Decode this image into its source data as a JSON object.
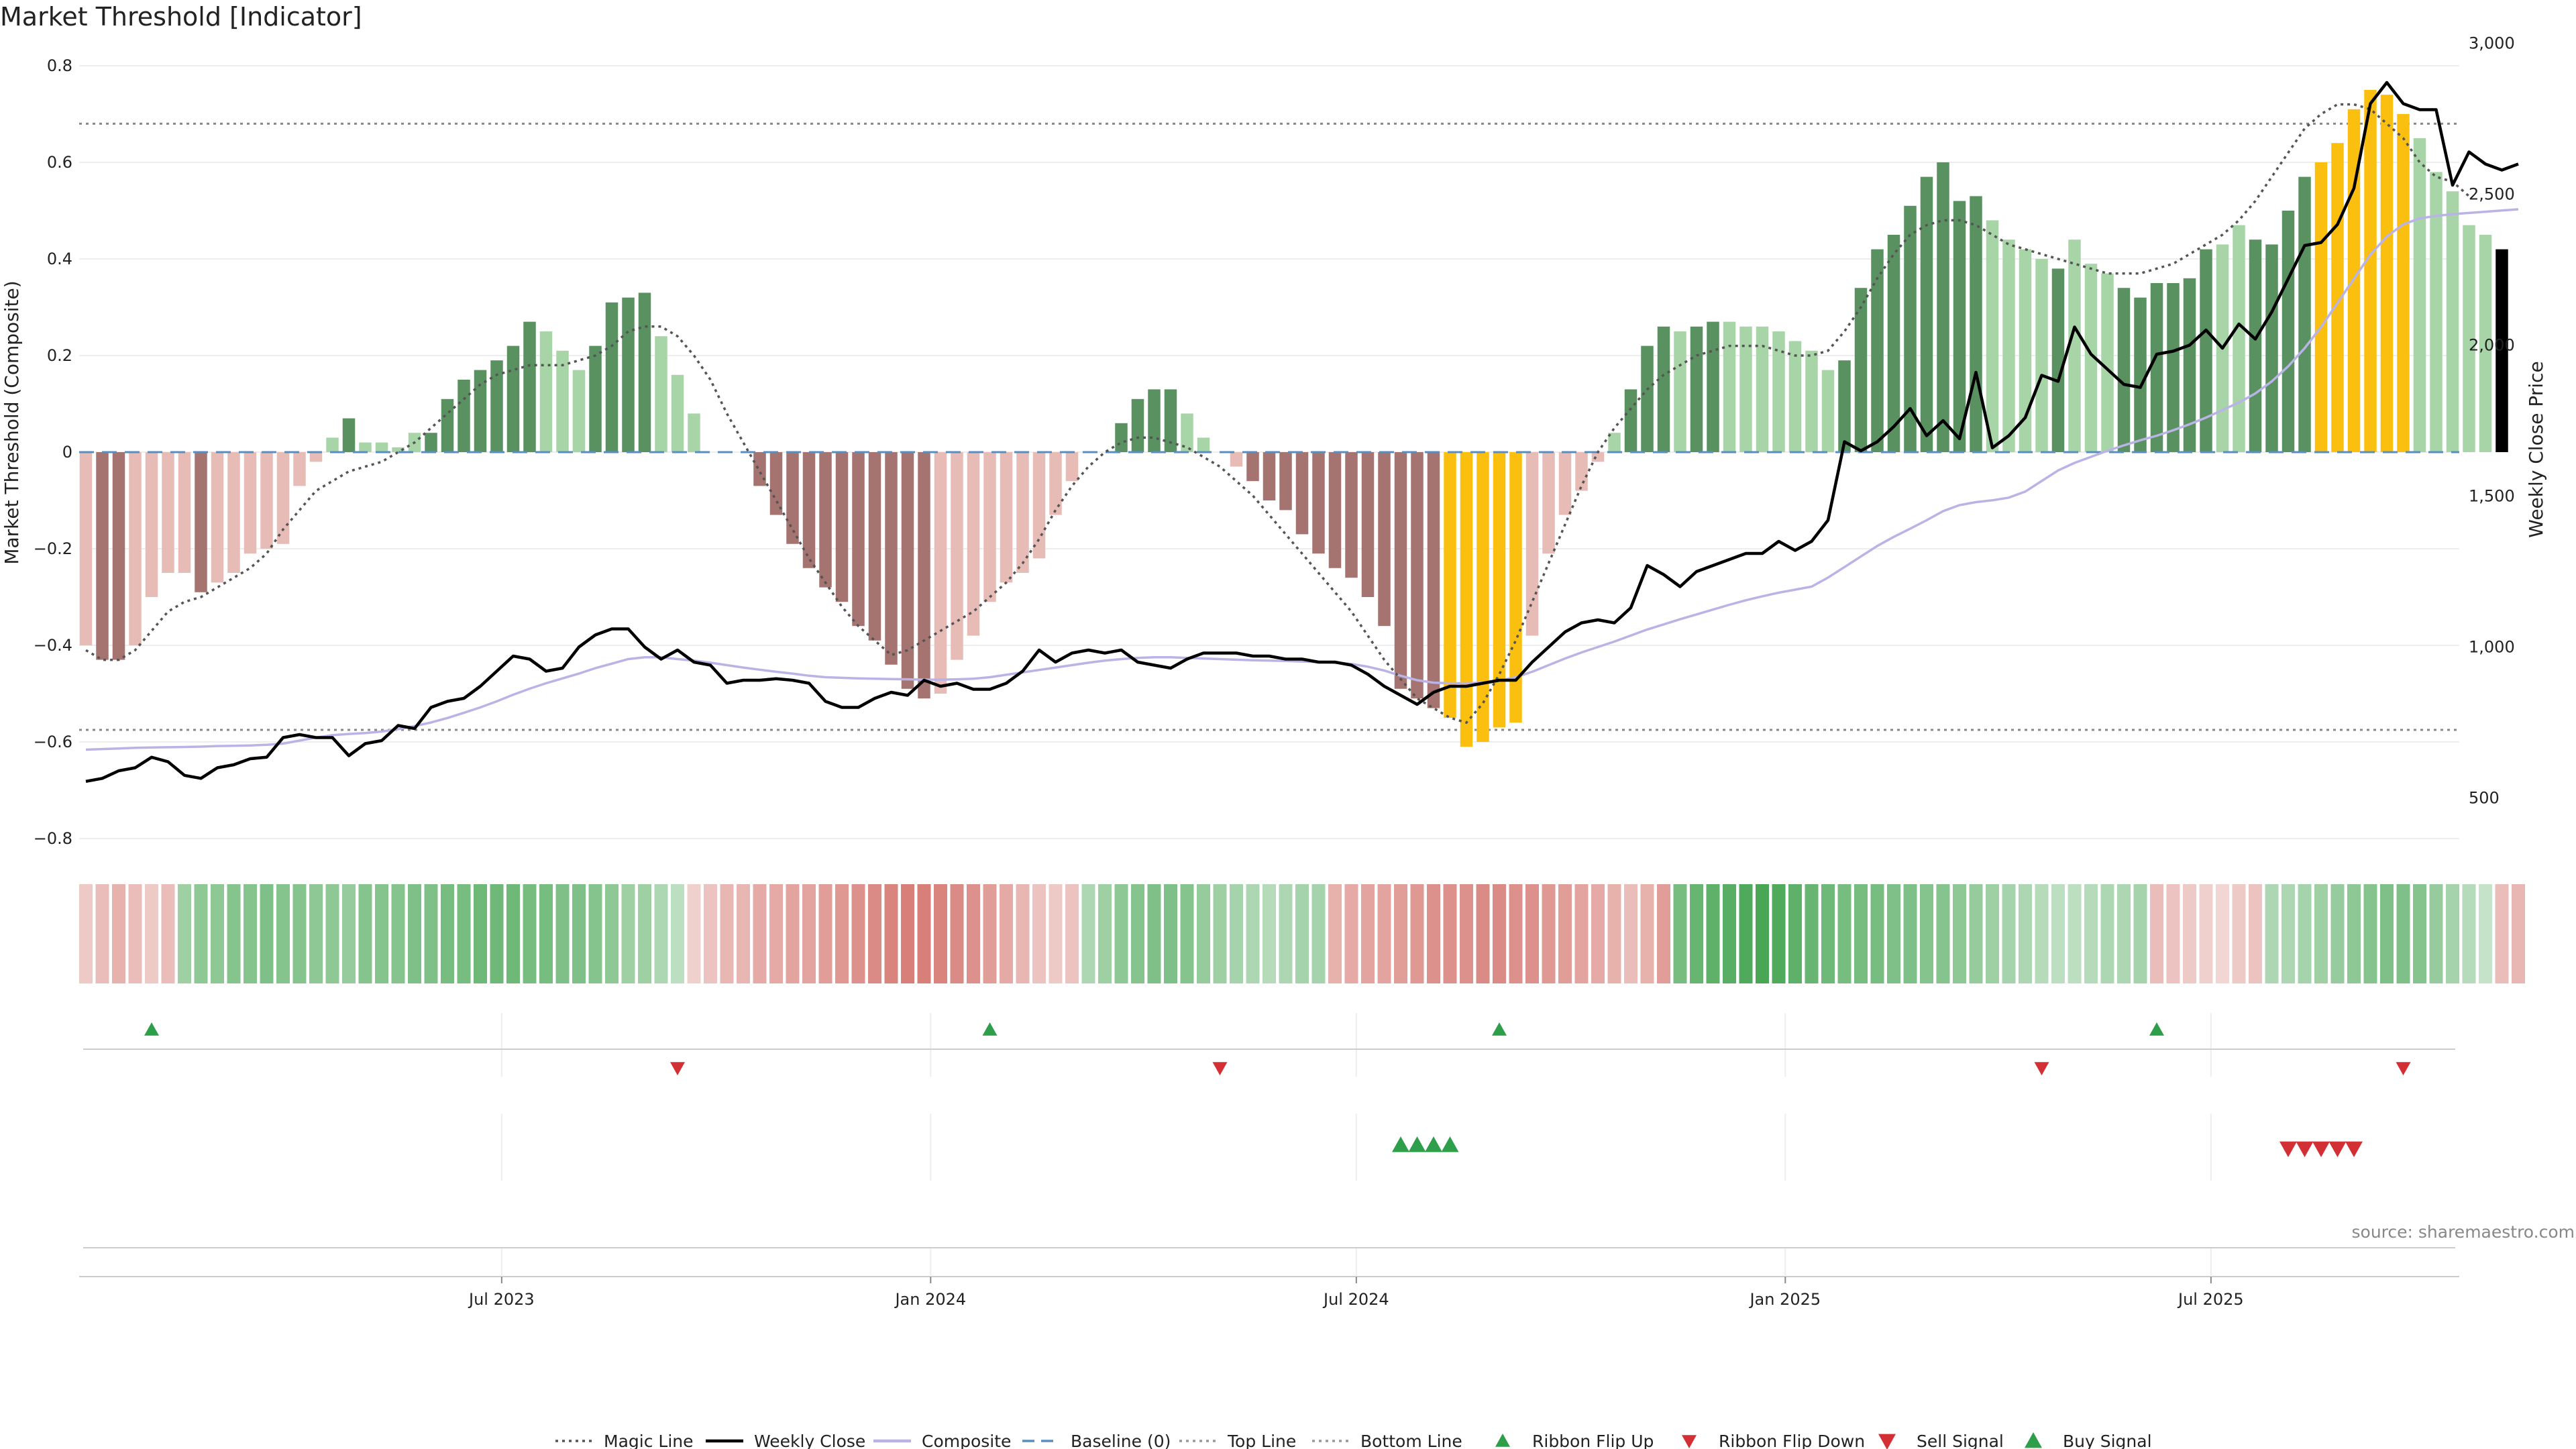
{
  "chart_data": {
    "type": "bar",
    "title": "Market Threshold [Indicator]",
    "ylabel_left": "Market Threshold (Composite)",
    "ylabel_right": "Weekly Close Price",
    "ylim_left": [
      -0.8,
      0.8
    ],
    "ylim_right": [
      350,
      3050
    ],
    "left_ticks": [
      "0.8",
      "0.6",
      "0.4",
      "0.2",
      "0",
      "−0.2",
      "−0.4",
      "−0.6",
      "−0.8"
    ],
    "right_ticks": [
      "3,000",
      "2,500",
      "2,000",
      "1,500",
      "1,000",
      "500"
    ],
    "x_ticks": [
      "Jul 2023",
      "Jan 2024",
      "Jul 2024",
      "Jan 2025",
      "Jul 2025"
    ],
    "x_range_weeks": [
      "2023-01-02",
      "2025-10-20"
    ],
    "top_line": 0.68,
    "bottom_line": -0.575,
    "grid": true,
    "legend_position": "bottom-center",
    "source": "source: sharemaestro.com",
    "colors": {
      "dark_green": "#5a9160",
      "light_green": "#a8d5a8",
      "dark_red": "#a67470",
      "light_red": "#e8bcb6",
      "extreme": "#fbbf10",
      "magic": "#555555",
      "close": "#000000",
      "composite": "#b9b3e6",
      "baseline": "#5a8ec1",
      "buy": "#2e9e4a",
      "sell": "#d33036"
    },
    "series": [
      {
        "name": "Composite",
        "values": [
          -0.4,
          -0.43,
          -0.43,
          -0.4,
          -0.3,
          -0.25,
          -0.25,
          -0.29,
          -0.27,
          -0.25,
          -0.21,
          -0.2,
          -0.19,
          -0.07,
          -0.02,
          0.03,
          0.07,
          0.02,
          0.02,
          0.01,
          0.04,
          0.04,
          0.11,
          0.15,
          0.17,
          0.19,
          0.22,
          0.27,
          0.25,
          0.21,
          0.17,
          0.22,
          0.31,
          0.32,
          0.33,
          0.24,
          0.16,
          0.08,
          0.0,
          0.0,
          0.0,
          -0.07,
          -0.13,
          -0.19,
          -0.24,
          -0.28,
          -0.31,
          -0.36,
          -0.39,
          -0.44,
          -0.49,
          -0.51,
          -0.5,
          -0.43,
          -0.38,
          -0.31,
          -0.27,
          -0.25,
          -0.22,
          -0.13,
          -0.06,
          0.0,
          0.0,
          0.06,
          0.11,
          0.13,
          0.13,
          0.08,
          0.03,
          0.0,
          -0.03,
          -0.06,
          -0.1,
          -0.12,
          -0.17,
          -0.21,
          -0.24,
          -0.26,
          -0.3,
          -0.36,
          -0.49,
          -0.51,
          -0.53,
          -0.55,
          -0.61,
          -0.6,
          -0.57,
          -0.56,
          -0.38,
          -0.21,
          -0.13,
          -0.08,
          -0.02,
          0.04,
          0.13,
          0.22,
          0.26,
          0.25,
          0.26,
          0.27,
          0.27,
          0.26,
          0.26,
          0.25,
          0.23,
          0.21,
          0.17,
          0.19,
          0.34,
          0.42,
          0.45,
          0.51,
          0.57,
          0.6,
          0.52,
          0.53,
          0.48,
          0.44,
          0.42,
          0.4,
          0.38,
          0.44,
          0.39,
          0.37,
          0.34,
          0.32,
          0.35,
          0.35,
          0.36,
          0.42,
          0.43,
          0.47,
          0.44,
          0.43,
          0.5,
          0.57,
          0.6,
          0.64,
          0.71,
          0.75,
          0.74,
          0.7,
          0.65,
          0.58,
          0.54,
          0.47,
          0.45,
          0.42
        ],
        "states": [
          "LR",
          "DR",
          "DR",
          "LR",
          "LR",
          "LR",
          "LR",
          "DR",
          "LR",
          "LR",
          "LR",
          "LR",
          "LR",
          "LR",
          "LR",
          "LG",
          "DG",
          "LG",
          "LG",
          "LG",
          "LG",
          "DG",
          "DG",
          "DG",
          "DG",
          "DG",
          "DG",
          "DG",
          "LG",
          "LG",
          "LG",
          "DG",
          "DG",
          "DG",
          "DG",
          "LG",
          "LG",
          "LG",
          "N",
          "N",
          "N",
          "DR",
          "DR",
          "DR",
          "DR",
          "DR",
          "DR",
          "DR",
          "DR",
          "DR",
          "DR",
          "DR",
          "LR",
          "LR",
          "LR",
          "LR",
          "LR",
          "LR",
          "LR",
          "LR",
          "LR",
          "N",
          "N",
          "DG",
          "DG",
          "DG",
          "DG",
          "LG",
          "LG",
          "N",
          "LR",
          "DR",
          "DR",
          "DR",
          "DR",
          "DR",
          "DR",
          "DR",
          "DR",
          "DR",
          "DR",
          "DR",
          "DR",
          "Y",
          "Y",
          "Y",
          "Y",
          "Y",
          "LR",
          "LR",
          "LR",
          "LR",
          "LR",
          "LG",
          "DG",
          "DG",
          "DG",
          "LG",
          "DG",
          "DG",
          "LG",
          "LG",
          "LG",
          "LG",
          "LG",
          "LG",
          "LG",
          "DG",
          "DG",
          "DG",
          "DG",
          "DG",
          "DG",
          "DG",
          "DG",
          "DG",
          "LG",
          "LG",
          "LG",
          "LG",
          "DG",
          "LG",
          "LG",
          "LG",
          "DG",
          "DG",
          "DG",
          "DG",
          "DG",
          "DG",
          "LG",
          "LG",
          "DG",
          "DG",
          "DG",
          "DG",
          "Y",
          "Y",
          "Y",
          "Y",
          "Y",
          "Y",
          "LG",
          "LG",
          "LG",
          "LG",
          "LG"
        ]
      },
      {
        "name": "Magic Line",
        "values": [
          -0.41,
          -0.43,
          -0.43,
          -0.41,
          -0.37,
          -0.33,
          -0.31,
          -0.3,
          -0.28,
          -0.26,
          -0.24,
          -0.21,
          -0.16,
          -0.12,
          -0.08,
          -0.06,
          -0.04,
          -0.03,
          -0.02,
          0.0,
          0.02,
          0.05,
          0.08,
          0.11,
          0.14,
          0.16,
          0.17,
          0.18,
          0.18,
          0.18,
          0.19,
          0.2,
          0.22,
          0.25,
          0.26,
          0.26,
          0.24,
          0.2,
          0.15,
          0.08,
          0.02,
          -0.04,
          -0.1,
          -0.16,
          -0.22,
          -0.27,
          -0.32,
          -0.36,
          -0.39,
          -0.42,
          -0.41,
          -0.39,
          -0.37,
          -0.35,
          -0.33,
          -0.3,
          -0.27,
          -0.23,
          -0.18,
          -0.12,
          -0.07,
          -0.03,
          0.0,
          0.02,
          0.03,
          0.03,
          0.02,
          0.01,
          -0.01,
          -0.03,
          -0.06,
          -0.09,
          -0.13,
          -0.17,
          -0.21,
          -0.25,
          -0.29,
          -0.33,
          -0.38,
          -0.43,
          -0.47,
          -0.51,
          -0.53,
          -0.55,
          -0.56,
          -0.52,
          -0.46,
          -0.39,
          -0.31,
          -0.23,
          -0.15,
          -0.07,
          0.0,
          0.05,
          0.09,
          0.13,
          0.16,
          0.18,
          0.2,
          0.21,
          0.22,
          0.22,
          0.22,
          0.21,
          0.2,
          0.2,
          0.21,
          0.25,
          0.3,
          0.36,
          0.41,
          0.45,
          0.47,
          0.48,
          0.48,
          0.47,
          0.45,
          0.43,
          0.42,
          0.41,
          0.4,
          0.39,
          0.38,
          0.37,
          0.37,
          0.37,
          0.38,
          0.39,
          0.41,
          0.43,
          0.45,
          0.48,
          0.52,
          0.57,
          0.62,
          0.67,
          0.7,
          0.72,
          0.72,
          0.71,
          0.68,
          0.65,
          0.6,
          0.57,
          0.56,
          0.53
        ]
      },
      {
        "name": "Weekly Close",
        "values": [
          555,
          565,
          590,
          600,
          635,
          620,
          575,
          565,
          600,
          610,
          630,
          635,
          700,
          710,
          700,
          700,
          640,
          680,
          690,
          740,
          730,
          800,
          820,
          830,
          870,
          920,
          970,
          960,
          920,
          930,
          1000,
          1040,
          1060,
          1060,
          1000,
          960,
          990,
          950,
          940,
          880,
          890,
          890,
          895,
          890,
          880,
          820,
          800,
          800,
          830,
          850,
          840,
          890,
          870,
          880,
          860,
          860,
          880,
          920,
          990,
          950,
          980,
          990,
          980,
          990,
          950,
          940,
          930,
          960,
          980,
          980,
          980,
          970,
          970,
          960,
          960,
          950,
          950,
          940,
          910,
          870,
          840,
          810,
          850,
          870,
          870,
          880,
          890,
          890,
          950,
          1000,
          1050,
          1080,
          1090,
          1080,
          1130,
          1270,
          1240,
          1200,
          1250,
          1270,
          1290,
          1310,
          1310,
          1350,
          1320,
          1350,
          1420,
          1680,
          1650,
          1680,
          1730,
          1790,
          1700,
          1750,
          1690,
          1910,
          1660,
          1700,
          1760,
          1900,
          1880,
          2060,
          1970,
          1920,
          1870,
          1860,
          1970,
          1980,
          2000,
          2050,
          1990,
          2070,
          2020,
          2110,
          2220,
          2330,
          2340,
          2400,
          2520,
          2800,
          2870,
          2800,
          2780,
          2780,
          2530,
          2640,
          2600,
          2580,
          2600
        ]
      },
      {
        "name": "Composite (smoothed price)",
        "values": [
          660,
          662,
          664,
          666,
          667,
          668,
          669,
          670,
          672,
          673,
          674,
          676,
          680,
          690,
          700,
          708,
          712,
          715,
          720,
          728,
          738,
          750,
          765,
          782,
          800,
          820,
          842,
          862,
          880,
          896,
          912,
          930,
          945,
          960,
          966,
          966,
          960,
          955,
          948,
          940,
          932,
          925,
          918,
          912,
          905,
          900,
          898,
          896,
          895,
          894,
          893,
          892,
          892,
          893,
          895,
          900,
          908,
          916,
          924,
          932,
          940,
          948,
          955,
          960,
          964,
          966,
          966,
          964,
          962,
          960,
          958,
          956,
          955,
          954,
          952,
          950,
          948,
          944,
          935,
          922,
          905,
          890,
          882,
          880,
          880,
          882,
          888,
          900,
          918,
          940,
          962,
          982,
          1000,
          1018,
          1038,
          1058,
          1075,
          1092,
          1108,
          1124,
          1140,
          1155,
          1168,
          1180,
          1190,
          1200,
          1230,
          1265,
          1300,
          1335,
          1365,
          1392,
          1420,
          1450,
          1470,
          1480,
          1486,
          1495,
          1515,
          1550,
          1585,
          1610,
          1630,
          1650,
          1668,
          1685,
          1700,
          1718,
          1738,
          1760,
          1785,
          1810,
          1840,
          1880,
          1930,
          1990,
          2060,
          2140,
          2220,
          2300,
          2360,
          2400,
          2420,
          2428,
          2434,
          2438,
          2442,
          2446,
          2450
        ]
      }
    ],
    "ribbon_shades": [
      0.25,
      0.35,
      0.45,
      0.35,
      0.25,
      0.35,
      0.45,
      0.55,
      0.55,
      0.6,
      0.6,
      0.65,
      0.6,
      0.6,
      0.55,
      0.55,
      0.5,
      0.6,
      0.6,
      0.6,
      0.65,
      0.65,
      0.7,
      0.7,
      0.75,
      0.75,
      0.75,
      0.7,
      0.7,
      0.65,
      0.65,
      0.6,
      0.55,
      0.45,
      0.45,
      0.35,
      0.25,
      0.2,
      0.3,
      0.4,
      0.4,
      0.5,
      0.5,
      0.55,
      0.55,
      0.6,
      0.65,
      0.7,
      0.75,
      0.8,
      0.85,
      0.85,
      0.8,
      0.75,
      0.7,
      0.6,
      0.5,
      0.4,
      0.3,
      0.25,
      0.3,
      0.35,
      0.45,
      0.55,
      0.6,
      0.65,
      0.65,
      0.6,
      0.5,
      0.45,
      0.4,
      0.35,
      0.3,
      0.35,
      0.4,
      0.4,
      0.45,
      0.5,
      0.55,
      0.55,
      0.6,
      0.65,
      0.7,
      0.7,
      0.7,
      0.75,
      0.75,
      0.7,
      0.7,
      0.65,
      0.6,
      0.55,
      0.5,
      0.45,
      0.35,
      0.45,
      0.6,
      0.7,
      0.8,
      0.85,
      0.9,
      0.95,
      1.0,
      0.95,
      0.85,
      0.8,
      0.75,
      0.7,
      0.7,
      0.7,
      0.65,
      0.65,
      0.6,
      0.6,
      0.55,
      0.5,
      0.45,
      0.4,
      0.35,
      0.3,
      0.25,
      0.25,
      0.3,
      0.35,
      0.35,
      0.4,
      0.35,
      0.3,
      0.25,
      0.2,
      0.15,
      0.25,
      0.3,
      0.35,
      0.35,
      0.4,
      0.45,
      0.5,
      0.55,
      0.6,
      0.65,
      0.65,
      0.6,
      0.5,
      0.4,
      0.3,
      0.2,
      0.35,
      0.4
    ],
    "ribbon_signs": [
      -1,
      -1,
      -1,
      -1,
      -1,
      -1,
      1,
      1,
      1,
      1,
      1,
      1,
      1,
      1,
      1,
      1,
      1,
      1,
      1,
      1,
      1,
      1,
      1,
      1,
      1,
      1,
      1,
      1,
      1,
      1,
      1,
      1,
      1,
      1,
      1,
      1,
      1,
      -1,
      -1,
      -1,
      -1,
      -1,
      -1,
      -1,
      -1,
      -1,
      -1,
      -1,
      -1,
      -1,
      -1,
      -1,
      -1,
      -1,
      -1,
      -1,
      -1,
      -1,
      -1,
      -1,
      -1,
      1,
      1,
      1,
      1,
      1,
      1,
      1,
      1,
      1,
      1,
      1,
      1,
      1,
      1,
      1,
      -1,
      -1,
      -1,
      -1,
      -1,
      -1,
      -1,
      -1,
      -1,
      -1,
      -1,
      -1,
      -1,
      -1,
      -1,
      -1,
      -1,
      -1,
      -1,
      -1,
      -1,
      1,
      1,
      1,
      1,
      1,
      1,
      1,
      1,
      1,
      1,
      1,
      1,
      1,
      1,
      1,
      1,
      1,
      1,
      1,
      1,
      1,
      1,
      1,
      1,
      1,
      1,
      1,
      1,
      1,
      -1,
      -1,
      -1,
      -1,
      -1,
      -1,
      -1,
      1,
      1,
      1,
      1,
      1,
      1,
      1,
      1,
      1,
      1,
      1,
      1,
      1,
      1,
      -1,
      -1,
      -1
    ],
    "ribbon_flip_up_weeks": [
      4,
      55,
      86,
      126
    ],
    "ribbon_flip_down_weeks": [
      36,
      69,
      119,
      141
    ],
    "buy_signal_weeks": [
      80,
      81,
      82,
      83
    ],
    "sell_signal_weeks": [
      134,
      135,
      136,
      137,
      138
    ]
  },
  "legend": [
    {
      "label": "Magic Line",
      "style": "dotted",
      "color": "#555555"
    },
    {
      "label": "Weekly Close",
      "style": "solid",
      "color": "#000000"
    },
    {
      "label": "Composite",
      "style": "solid",
      "color": "#b9b3e6"
    },
    {
      "label": "Baseline (0)",
      "style": "dashed",
      "color": "#5a8ec1"
    },
    {
      "label": "Top Line",
      "style": "dotted",
      "color": "#999999"
    },
    {
      "label": "Bottom Line",
      "style": "dotted",
      "color": "#999999"
    },
    {
      "label": "Ribbon Flip Up",
      "style": "tri-up",
      "color": "#2e9e4a"
    },
    {
      "label": "Ribbon Flip Down",
      "style": "tri-down",
      "color": "#d33036"
    },
    {
      "label": "Sell Signal",
      "style": "tri-down-big",
      "color": "#d33036"
    },
    {
      "label": "Buy Signal",
      "style": "tri-up-big",
      "color": "#2e9e4a"
    }
  ]
}
